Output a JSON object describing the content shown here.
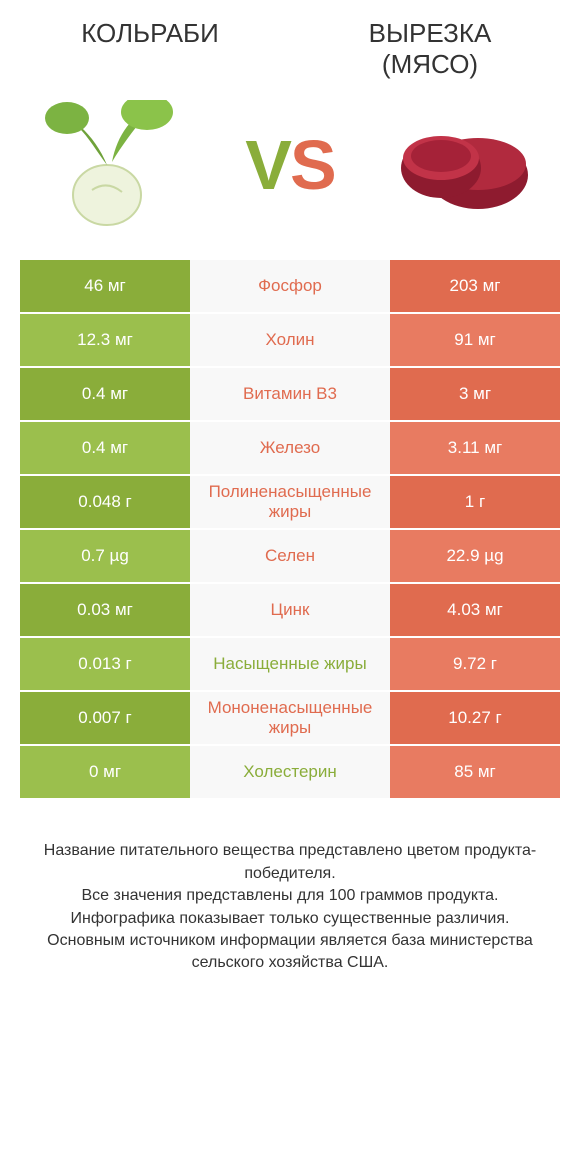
{
  "colors": {
    "green_dark": "#8aad3a",
    "green_light": "#9bbf4d",
    "orange_dark": "#e06b4f",
    "orange_light": "#e87b61",
    "mid_bg": "#f8f8f8",
    "text": "#333333"
  },
  "header": {
    "left": "Кольраби",
    "right_line1": "Вырезка",
    "right_line2": "(мясо)"
  },
  "vs": {
    "v": "V",
    "s": "S"
  },
  "rows": [
    {
      "left": "46 мг",
      "mid": "Фосфор",
      "right": "203 мг",
      "winner": "right"
    },
    {
      "left": "12.3 мг",
      "mid": "Холин",
      "right": "91 мг",
      "winner": "right"
    },
    {
      "left": "0.4 мг",
      "mid": "Витамин B3",
      "right": "3 мг",
      "winner": "right"
    },
    {
      "left": "0.4 мг",
      "mid": "Железо",
      "right": "3.11 мг",
      "winner": "right"
    },
    {
      "left": "0.048 г",
      "mid": "Полиненасыщенные жиры",
      "right": "1 г",
      "winner": "right"
    },
    {
      "left": "0.7 µg",
      "mid": "Селен",
      "right": "22.9 µg",
      "winner": "right"
    },
    {
      "left": "0.03 мг",
      "mid": "Цинк",
      "right": "4.03 мг",
      "winner": "right"
    },
    {
      "left": "0.013 г",
      "mid": "Насыщенные жиры",
      "right": "9.72 г",
      "winner": "left"
    },
    {
      "left": "0.007 г",
      "mid": "Мононенасыщенные жиры",
      "right": "10.27 г",
      "winner": "right"
    },
    {
      "left": "0 мг",
      "mid": "Холестерин",
      "right": "85 мг",
      "winner": "left"
    }
  ],
  "row_style": {
    "left_alt_colors": [
      "#8aad3a",
      "#9bbf4d"
    ],
    "right_alt_colors": [
      "#e06b4f",
      "#e87b61"
    ],
    "mid_text_green": "#8aad3a",
    "mid_text_orange": "#e06b4f"
  },
  "footer": {
    "l1": "Название питательного вещества представлено цветом продукта-победителя.",
    "l2": "Все значения представлены для 100 граммов продукта.",
    "l3": "Инфографика показывает только существенные различия.",
    "l4": "Основным источником информации является база министерства сельского хозяйства США."
  }
}
